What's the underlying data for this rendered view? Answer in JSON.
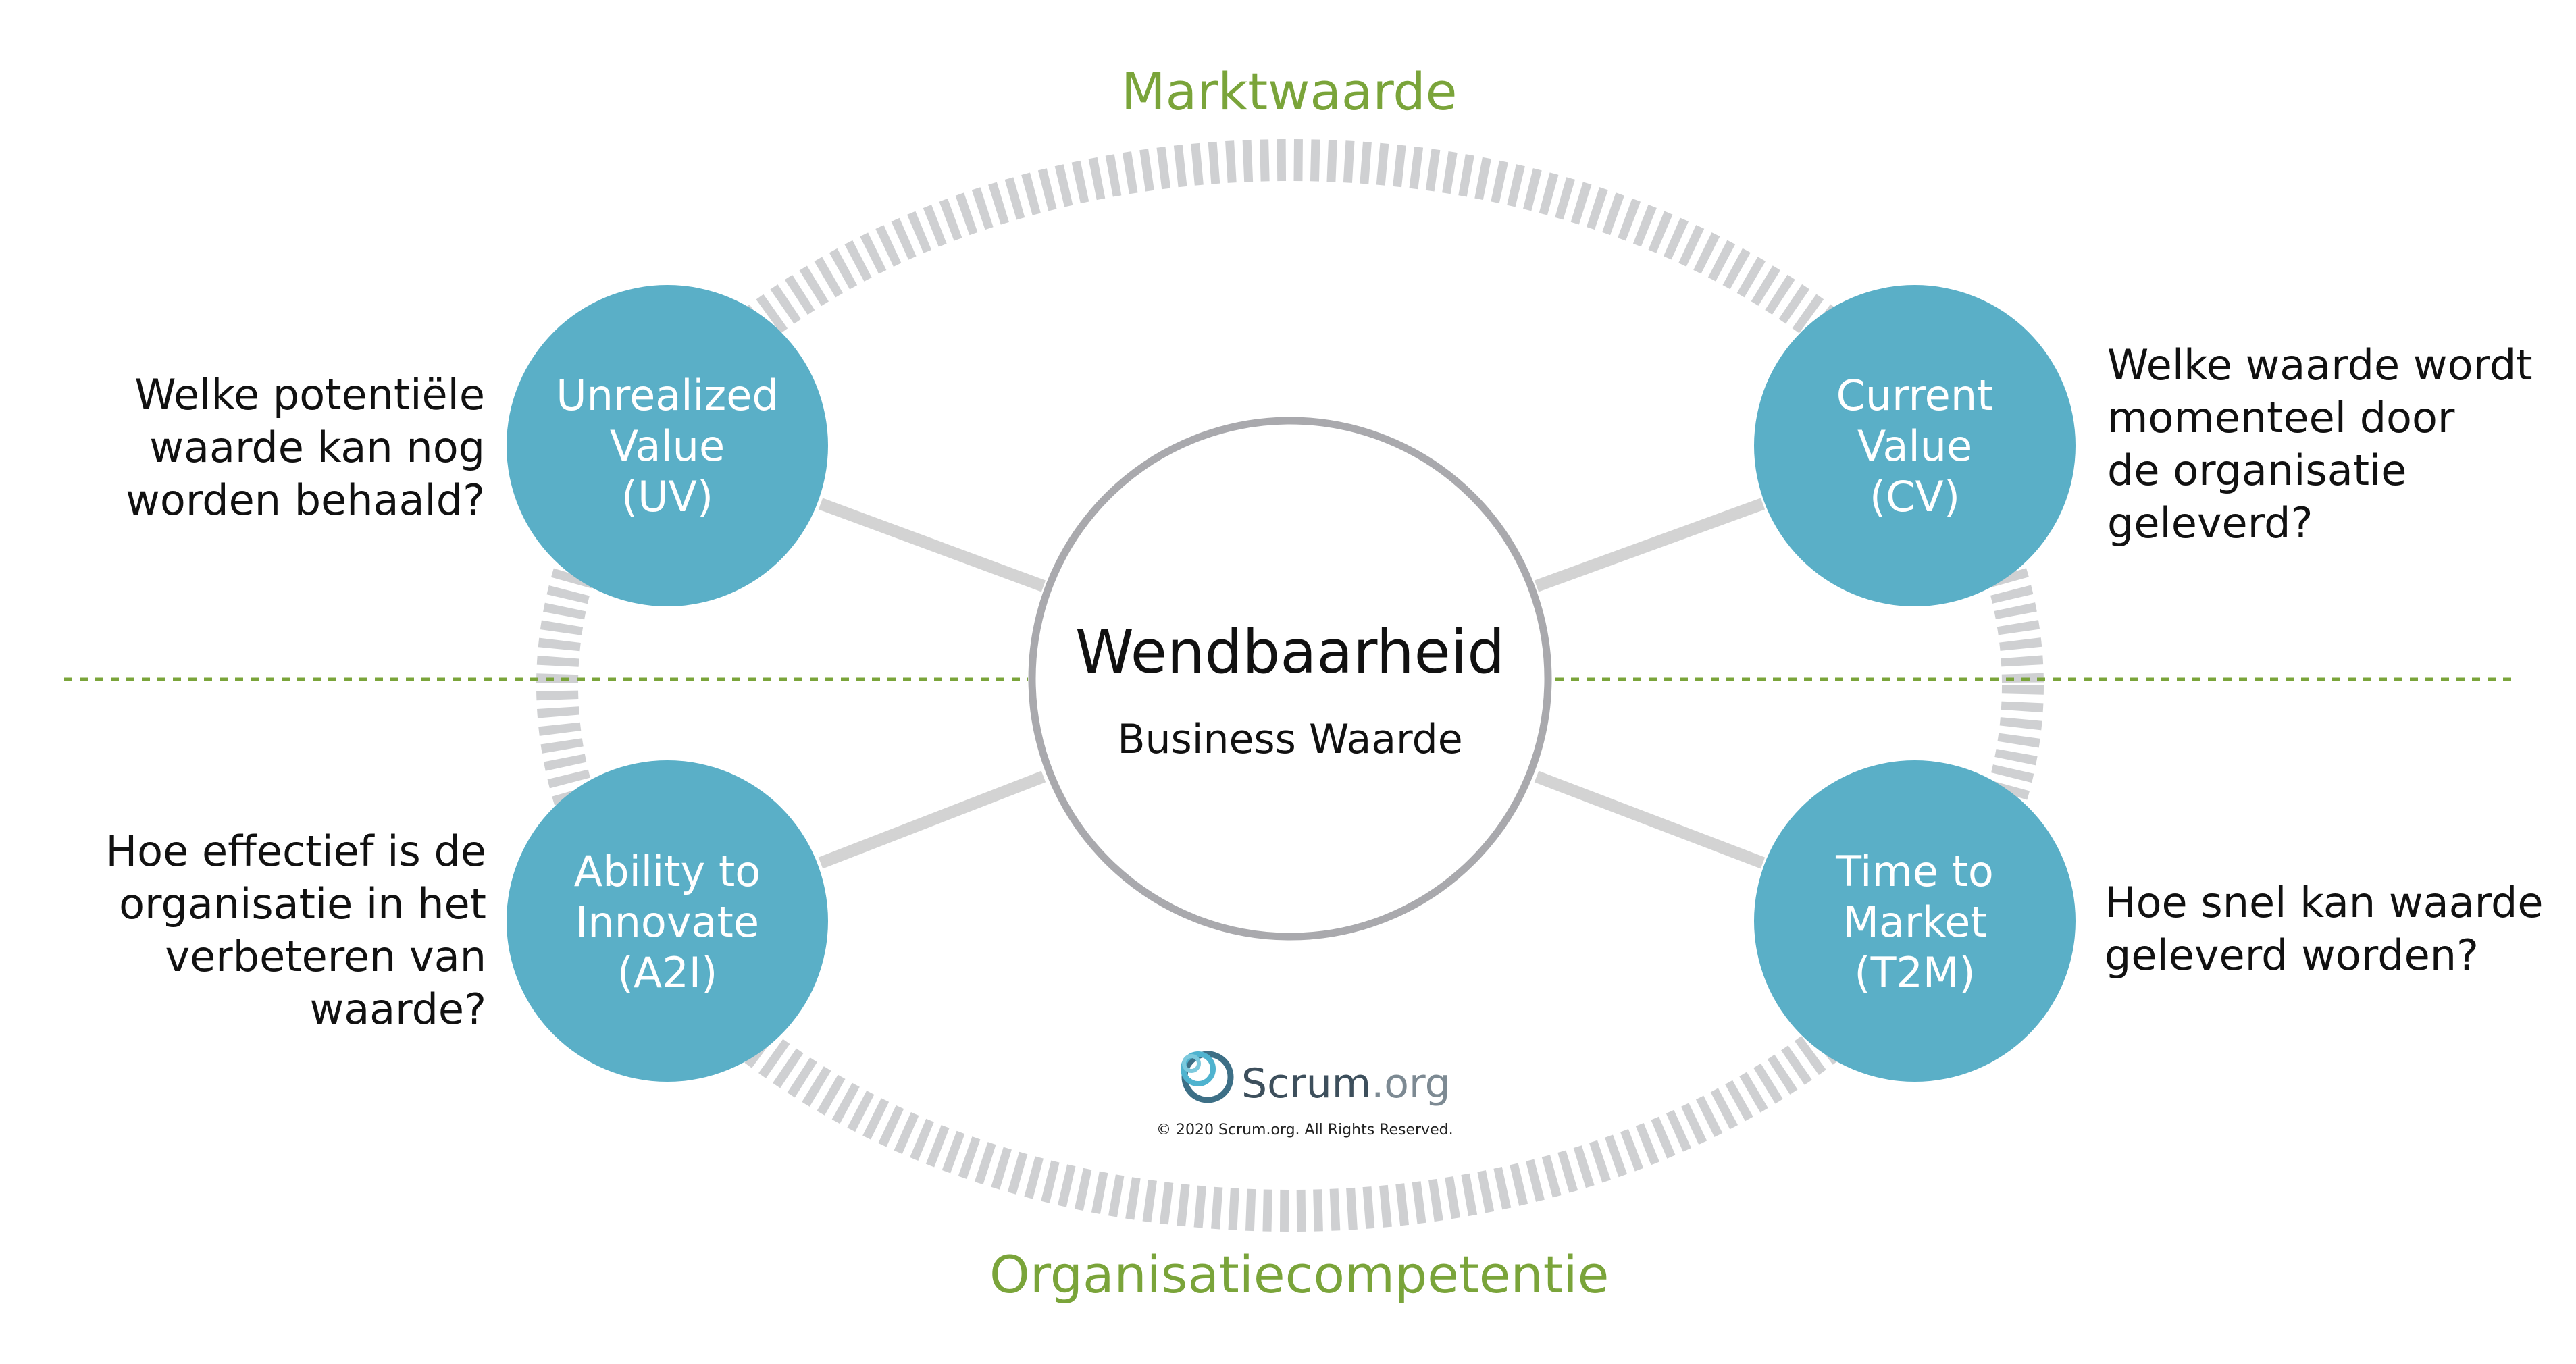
{
  "market": {
    "title": "Marktwaarde"
  },
  "organisation": {
    "title": "Organisatiecompetentie"
  },
  "center": {
    "title": "Wendbaarheid",
    "subtitle": "Business Waarde"
  },
  "nodes": {
    "uv": {
      "label": "Unrealized\nValue\n(UV)",
      "question": "Welke potentiële\nwaarde kan nog\nworden behaald?"
    },
    "cv": {
      "label": "Current\nValue\n(CV)",
      "question": "Welke waarde wordt\nmomenteel door\nde organisatie\ngeleverd?"
    },
    "a2i": {
      "label": "Ability to\nInnovate\n(A2I)",
      "question": "Hoe effectief is de\norganisatie in het\nverbeteren van\nwaarde?"
    },
    "t2m": {
      "label": "Time to\nMarket\n(T2M)",
      "question": "Hoe snel kan waarde\ngeleverd worden?"
    }
  },
  "logo": {
    "name": "Scrum",
    "suffix": ".org",
    "copyright": "© 2020 Scrum.org. All Rights Reserved."
  },
  "colors": {
    "node": "#5aafc7",
    "green": "#7aa43a",
    "ring": "#cfd0d2",
    "connector": "#d3d3d3",
    "center_border": "#a9a9ad"
  },
  "icons": {
    "logo": "scrum-swirl-icon"
  }
}
